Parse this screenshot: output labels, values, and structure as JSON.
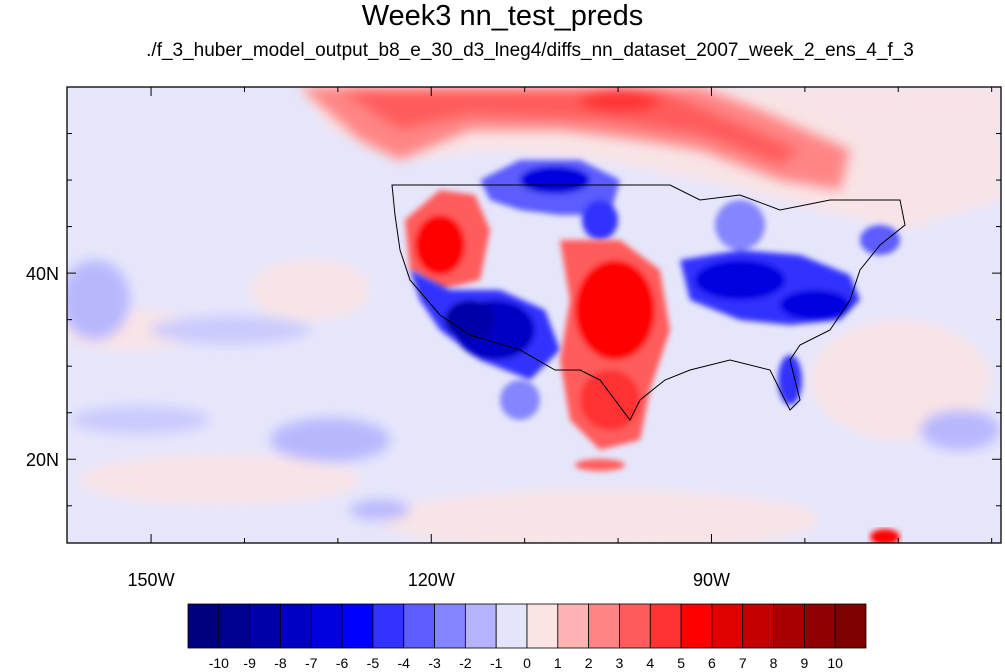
{
  "title": "Week3 nn_test_preds",
  "subtitle": "./f_3_huber_model_output_b8_e_30_d3_lneg4/diffs_nn_dataset_2007_week_2_ens_4_f_3",
  "lon_ticks": [
    {
      "lon": -150,
      "label": "150W"
    },
    {
      "lon": -120,
      "label": "120W"
    },
    {
      "lon": -90,
      "label": "90W"
    }
  ],
  "lat_ticks": [
    {
      "lat": 40,
      "label": "40N"
    },
    {
      "lat": 20,
      "label": "20N"
    }
  ],
  "map_extent": {
    "lon": [
      -159,
      -59
    ],
    "lat": [
      11,
      60
    ]
  },
  "colorbar": {
    "labels": [
      "-10",
      "-9",
      "-8",
      "-7",
      "-6",
      "-5",
      "-4",
      "-3",
      "-2",
      "-1",
      "0",
      "1",
      "2",
      "3",
      "4",
      "5",
      "6",
      "7",
      "8",
      "9",
      "10"
    ],
    "colors": [
      "#00007f",
      "#00008f",
      "#0000a8",
      "#0000c4",
      "#0000e0",
      "#0000ff",
      "#3333ff",
      "#5c5cff",
      "#8585ff",
      "#b3b3ff",
      "#e4e4fb",
      "#fbe4e4",
      "#ffb3b3",
      "#ff8585",
      "#ff5c5c",
      "#ff3333",
      "#ff0000",
      "#e00000",
      "#c40000",
      "#a80000",
      "#8f0000",
      "#7f0000"
    ]
  }
}
